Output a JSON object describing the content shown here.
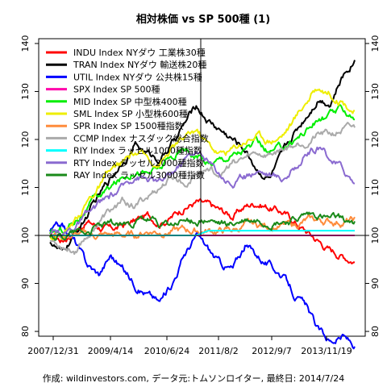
{
  "chart_data": {
    "type": "line",
    "title": "相対株価 vs SP 500種 (1)",
    "caption": "作成: wildinvestors.com, データ元:トムソンロイター, 最終日: 2014/7/24",
    "x_ticks": [
      "2007/12/31",
      "2009/4/14",
      "2010/6/24",
      "2011/8/2",
      "2012/9/7",
      "2013/11/19"
    ],
    "y_ticks": [
      80,
      90,
      100,
      110,
      120,
      130,
      140
    ],
    "ylim": [
      79,
      141
    ],
    "baseline": 100,
    "marker_date": "2011/8/2",
    "grid": false,
    "legend_position": "top-left",
    "series": [
      {
        "name": "INDU Index NYダウ 工業株30種",
        "color": "#ff0000",
        "values": [
          100,
          99,
          101,
          103,
          102,
          101,
          102,
          103,
          104,
          103,
          104,
          106,
          107,
          106,
          105,
          104,
          106,
          107,
          106,
          105,
          103,
          101,
          99,
          97,
          96,
          95
        ]
      },
      {
        "name": "TRAN Index NYダウ 輸送株20種",
        "color": "#000000",
        "values": [
          99,
          96,
          100,
          104,
          108,
          112,
          116,
          119,
          117,
          116,
          119,
          123,
          127,
          124,
          122,
          120,
          118,
          114,
          112,
          116,
          121,
          125,
          129,
          128,
          133,
          137
        ]
      },
      {
        "name": "UTIL Index NYダウ 公共株15種",
        "color": "#0000ff",
        "values": [
          101,
          102,
          99,
          94,
          92,
          96,
          93,
          90,
          88,
          86,
          90,
          96,
          100,
          97,
          94,
          93,
          98,
          96,
          94,
          92,
          88,
          85,
          80,
          78,
          79,
          77
        ]
      },
      {
        "name": "SPX Index SP 500種",
        "color": "#ff00aa",
        "values": [
          100,
          100,
          100,
          100,
          100,
          100,
          100,
          100,
          100,
          100,
          100,
          100,
          100,
          100,
          100,
          100,
          100,
          100,
          100,
          100,
          100,
          100,
          100,
          100,
          100,
          100
        ]
      },
      {
        "name": "MID Index SP 中型株400種",
        "color": "#00ee00",
        "values": [
          100,
          101,
          103,
          106,
          108,
          110,
          112,
          114,
          113,
          114,
          116,
          118,
          117,
          115,
          116,
          117,
          118,
          119,
          117,
          118,
          120,
          122,
          124,
          125,
          126,
          125
        ]
      },
      {
        "name": "SML Index SP 小型株600種",
        "color": "#eeee00",
        "values": [
          100,
          100,
          103,
          107,
          110,
          113,
          115,
          117,
          116,
          115,
          118,
          120,
          122,
          119,
          117,
          118,
          120,
          121,
          120,
          121,
          124,
          128,
          131,
          130,
          128,
          126
        ]
      },
      {
        "name": "SPR Index SP 1500種指数",
        "color": "#ff8c3c",
        "values": [
          100,
          100,
          100,
          100,
          100,
          100,
          100,
          100,
          101,
          101,
          101,
          101,
          101,
          101,
          101,
          101,
          102,
          102,
          102,
          102,
          102,
          103,
          103,
          103,
          103,
          103
        ]
      },
      {
        "name": "CCMP Index ナスダック総合指数",
        "color": "#aaaaaa",
        "values": [
          99,
          98,
          97,
          100,
          103,
          105,
          107,
          106,
          108,
          110,
          112,
          111,
          113,
          114,
          113,
          115,
          116,
          117,
          117,
          118,
          119,
          120,
          121,
          121,
          122,
          122
        ]
      },
      {
        "name": "RIY Index ラッセル1000種指数",
        "color": "#00ffff",
        "values": [
          100,
          100,
          100,
          100,
          100,
          100,
          100,
          100,
          100,
          100,
          100,
          100,
          100,
          101,
          101,
          101,
          101,
          101,
          101,
          101,
          101,
          101,
          101,
          101,
          101,
          101
        ]
      },
      {
        "name": "RTY Index ラッセル2000種指数",
        "color": "#8a6ad0",
        "values": [
          100,
          100,
          102,
          104,
          106,
          108,
          110,
          113,
          112,
          111,
          113,
          116,
          118,
          115,
          113,
          111,
          112,
          114,
          113,
          112,
          114,
          117,
          118,
          116,
          114,
          111
        ]
      },
      {
        "name": "RAY Index ラッセル3000種指数",
        "color": "#1a8a1a",
        "values": [
          100,
          100,
          101,
          101,
          102,
          102,
          102,
          103,
          103,
          102,
          102,
          103,
          103,
          103,
          102,
          102,
          103,
          103,
          103,
          103,
          103,
          104,
          104,
          103,
          103,
          103
        ]
      }
    ]
  }
}
